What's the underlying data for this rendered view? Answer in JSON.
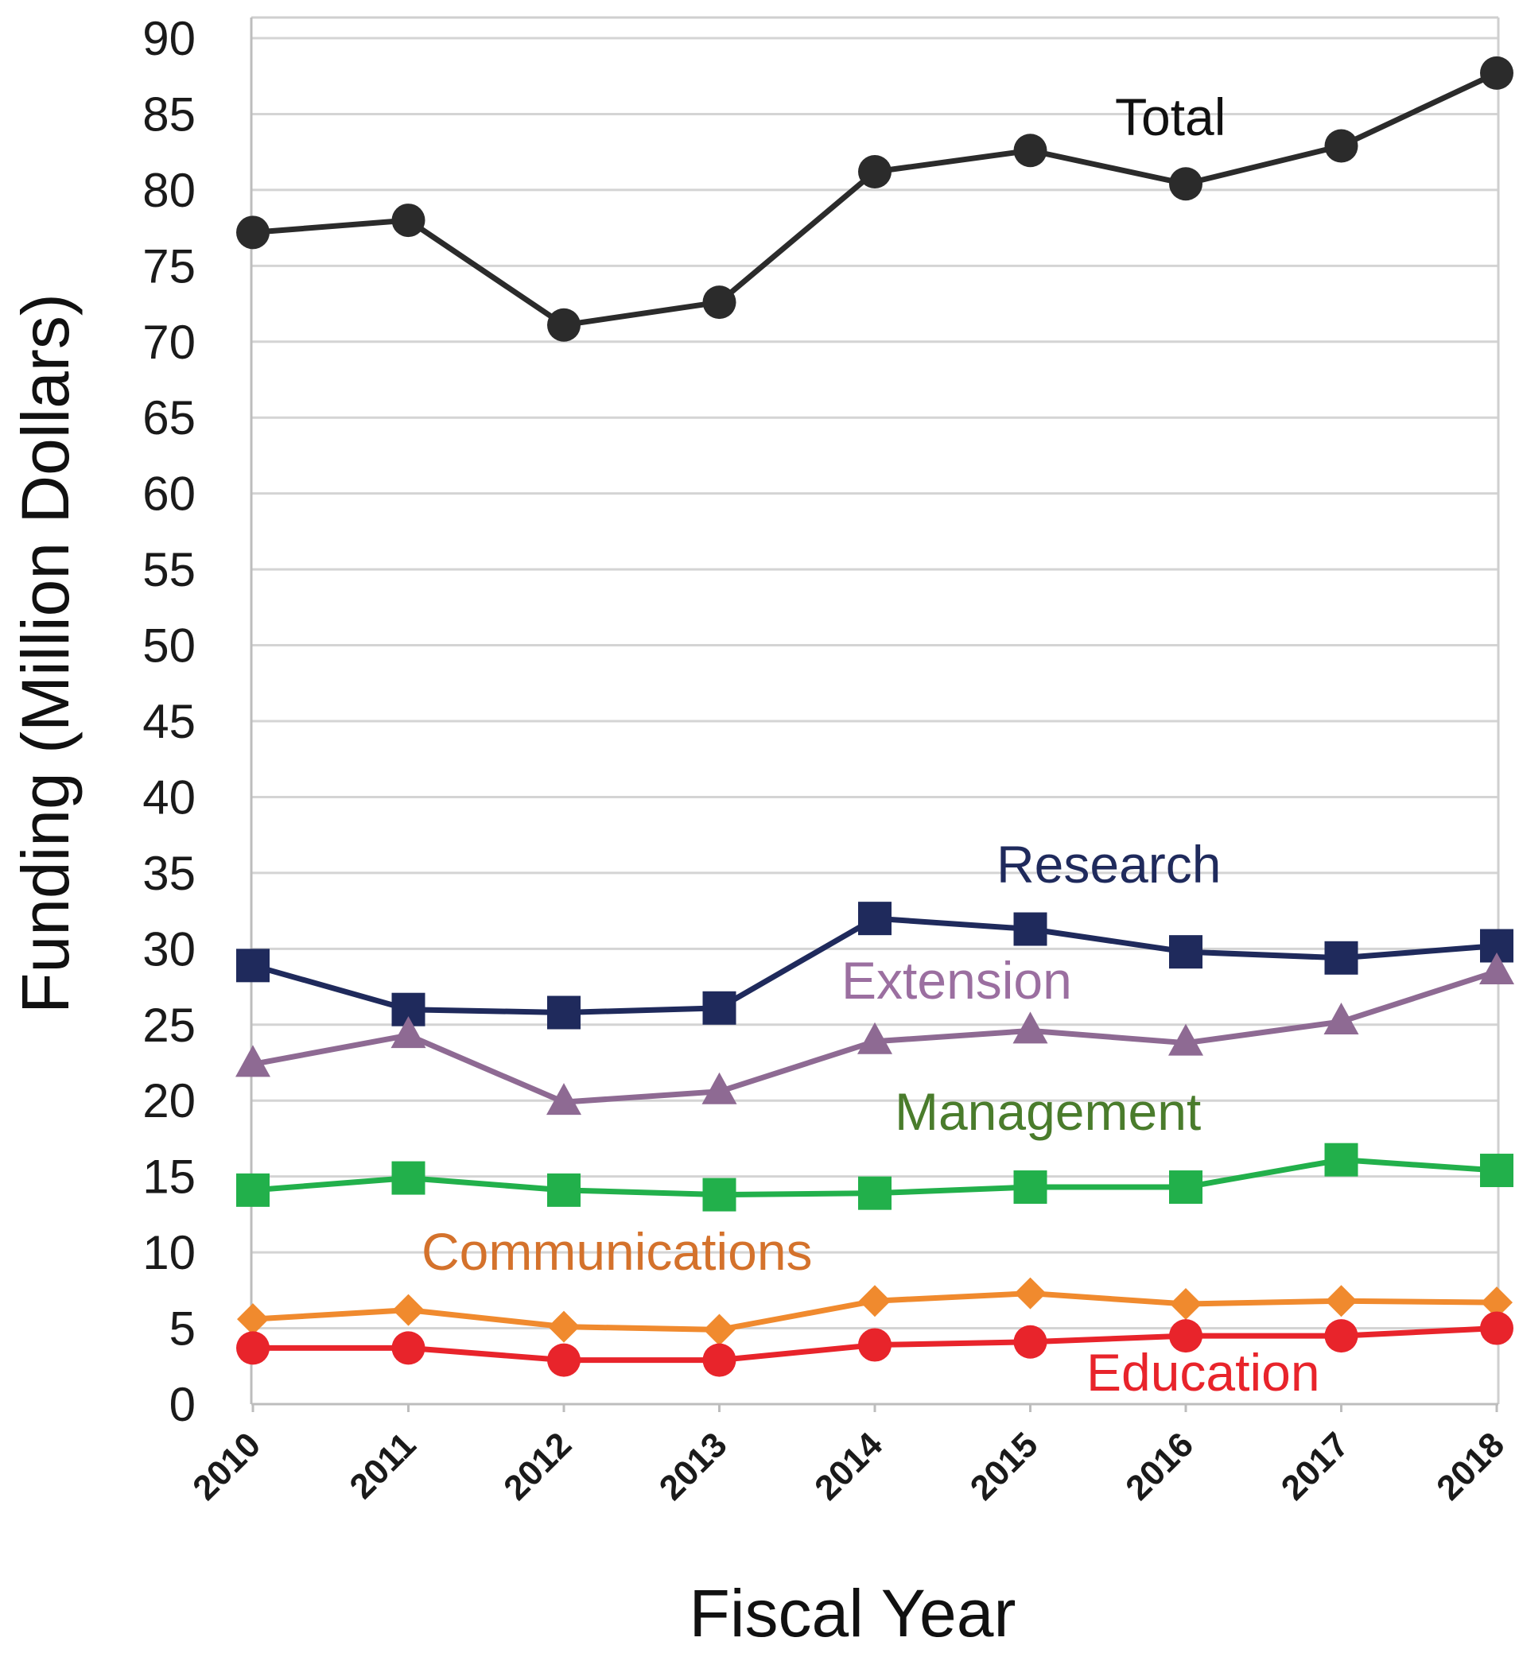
{
  "chart_data": {
    "type": "line",
    "title": "",
    "xlabel": "Fiscal Year",
    "ylabel": "Funding (Million Dollars)",
    "categories": [
      "2010",
      "2011",
      "2012",
      "2013",
      "2014",
      "2015",
      "2016",
      "2017",
      "2018"
    ],
    "ylim": [
      0,
      90
    ],
    "yticks": [
      0,
      5,
      10,
      15,
      20,
      25,
      30,
      35,
      40,
      45,
      50,
      55,
      60,
      65,
      70,
      75,
      80,
      85,
      90
    ],
    "grid": true,
    "legend": "inline labels next to lines",
    "series": [
      {
        "name": "Total",
        "color": "#2b2b2b",
        "marker": "circle",
        "values": [
          77.2,
          78.0,
          71.1,
          72.6,
          81.2,
          82.6,
          80.4,
          82.9,
          87.7
        ]
      },
      {
        "name": "Research",
        "color": "#1f2a5c",
        "marker": "square",
        "values": [
          28.9,
          26.0,
          25.8,
          26.1,
          32.0,
          31.3,
          29.8,
          29.4,
          30.2
        ]
      },
      {
        "name": "Extension",
        "color": "#8e6a93",
        "marker": "triangle",
        "values": [
          22.4,
          24.3,
          19.9,
          20.6,
          23.9,
          24.6,
          23.8,
          25.2,
          28.5
        ]
      },
      {
        "name": "Management",
        "color": "#22b04b",
        "marker": "square",
        "values": [
          14.1,
          14.9,
          14.1,
          13.8,
          13.9,
          14.3,
          14.3,
          16.1,
          15.4
        ]
      },
      {
        "name": "Communications",
        "color": "#f08a2e",
        "marker": "diamond",
        "values": [
          5.6,
          6.2,
          5.1,
          4.9,
          6.8,
          7.3,
          6.6,
          6.8,
          6.7
        ]
      },
      {
        "name": "Education",
        "color": "#e8242b",
        "marker": "circle",
        "values": [
          3.7,
          3.7,
          2.9,
          2.9,
          3.9,
          4.1,
          4.5,
          4.5,
          5.0
        ]
      }
    ],
    "series_labels": [
      {
        "text": "Total",
        "color": "#111111"
      },
      {
        "text": "Research",
        "color": "#1f2a5c"
      },
      {
        "text": "Extension",
        "color": "#9b6fa0"
      },
      {
        "text": "Management",
        "color": "#4a7c2c"
      },
      {
        "text": "Communications",
        "color": "#d4722c"
      },
      {
        "text": "Education",
        "color": "#e8242b"
      }
    ]
  }
}
